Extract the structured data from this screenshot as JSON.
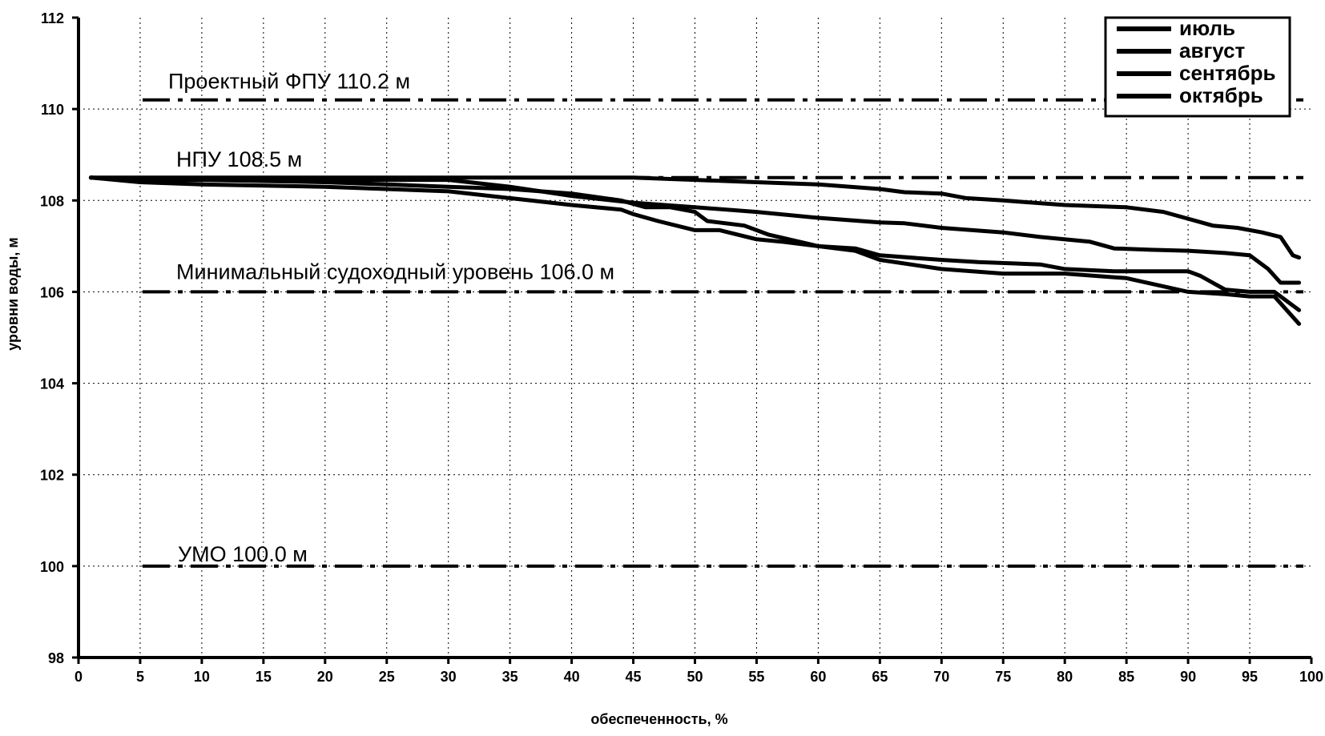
{
  "chart_data": {
    "type": "line",
    "xlabel": "обеспеченность, %",
    "ylabel": "уровни воды, м",
    "xlim": [
      0,
      100
    ],
    "ylim": [
      98,
      112
    ],
    "x_ticks": [
      0,
      5,
      10,
      15,
      20,
      25,
      30,
      35,
      40,
      45,
      50,
      55,
      60,
      65,
      70,
      75,
      80,
      85,
      90,
      95,
      100
    ],
    "y_ticks": [
      98,
      100,
      102,
      104,
      106,
      108,
      110,
      112
    ],
    "grid": true,
    "legend": {
      "position": "top-right",
      "entries": [
        "июль",
        "август",
        "сентябрь",
        "октябрь"
      ]
    },
    "reference_lines": [
      {
        "label": "Проектный ФПУ 110.2 м",
        "y": 110.2,
        "style": "dash-dot"
      },
      {
        "label": "НПУ 108.5 м",
        "y": 108.5,
        "style": "dash-dot"
      },
      {
        "label": "Минимальный судоходный уровень 106.0 м",
        "y": 106.0,
        "style": "dash-dot"
      },
      {
        "label": "УМО 100.0 м",
        "y": 100.0,
        "style": "dash-dot"
      }
    ],
    "series": [
      {
        "name": "июль",
        "color": "#000000",
        "x": [
          1,
          5,
          10,
          20,
          30,
          40,
          45,
          48,
          50,
          55,
          60,
          65,
          67,
          70,
          72,
          75,
          80,
          85,
          88,
          90,
          92,
          94,
          96,
          97.5,
          98.5,
          99
        ],
        "y": [
          108.5,
          108.5,
          108.5,
          108.5,
          108.5,
          108.5,
          108.5,
          108.47,
          108.45,
          108.4,
          108.35,
          108.25,
          108.18,
          108.15,
          108.05,
          108.0,
          107.9,
          107.85,
          107.75,
          107.6,
          107.45,
          107.4,
          107.3,
          107.2,
          106.8,
          106.75
        ]
      },
      {
        "name": "август",
        "color": "#000000",
        "x": [
          1,
          5,
          10,
          20,
          25,
          30,
          35,
          40,
          45,
          50,
          55,
          60,
          65,
          67,
          70,
          75,
          78,
          82,
          84,
          87,
          90,
          93,
          95,
          96.5,
          97.5,
          99
        ],
        "y": [
          108.5,
          108.45,
          108.45,
          108.45,
          108.45,
          108.45,
          108.3,
          108.1,
          107.95,
          107.85,
          107.75,
          107.62,
          107.52,
          107.5,
          107.4,
          107.3,
          107.2,
          107.1,
          106.95,
          106.92,
          106.9,
          106.85,
          106.8,
          106.5,
          106.2,
          106.2
        ]
      },
      {
        "name": "сентябрь",
        "color": "#000000",
        "x": [
          1,
          3,
          5,
          10,
          20,
          30,
          35,
          40,
          44,
          45,
          47,
          50,
          52,
          55,
          57,
          60,
          63,
          65,
          70,
          75,
          80,
          85,
          90,
          93,
          95,
          97,
          99
        ],
        "y": [
          108.5,
          108.45,
          108.4,
          108.35,
          108.3,
          108.2,
          108.05,
          107.9,
          107.8,
          107.7,
          107.55,
          107.35,
          107.35,
          107.15,
          107.1,
          107.0,
          106.9,
          106.7,
          106.5,
          106.4,
          106.4,
          106.3,
          106.0,
          105.95,
          105.9,
          105.9,
          105.3
        ]
      },
      {
        "name": "октябрь",
        "color": "#000000",
        "x": [
          1,
          5,
          10,
          20,
          25,
          30,
          35,
          40,
          44,
          46,
          48,
          50,
          51,
          54,
          56,
          60,
          63,
          65,
          70,
          73,
          78,
          80,
          84,
          86,
          88,
          90,
          91,
          93,
          95,
          97,
          99
        ],
        "y": [
          108.5,
          108.45,
          108.45,
          108.4,
          108.35,
          108.3,
          108.25,
          108.15,
          108.0,
          107.85,
          107.85,
          107.75,
          107.55,
          107.45,
          107.25,
          107.0,
          106.95,
          106.8,
          106.7,
          106.65,
          106.6,
          106.5,
          106.45,
          106.45,
          106.45,
          106.45,
          106.35,
          106.05,
          106.0,
          106.0,
          105.6
        ]
      }
    ]
  }
}
